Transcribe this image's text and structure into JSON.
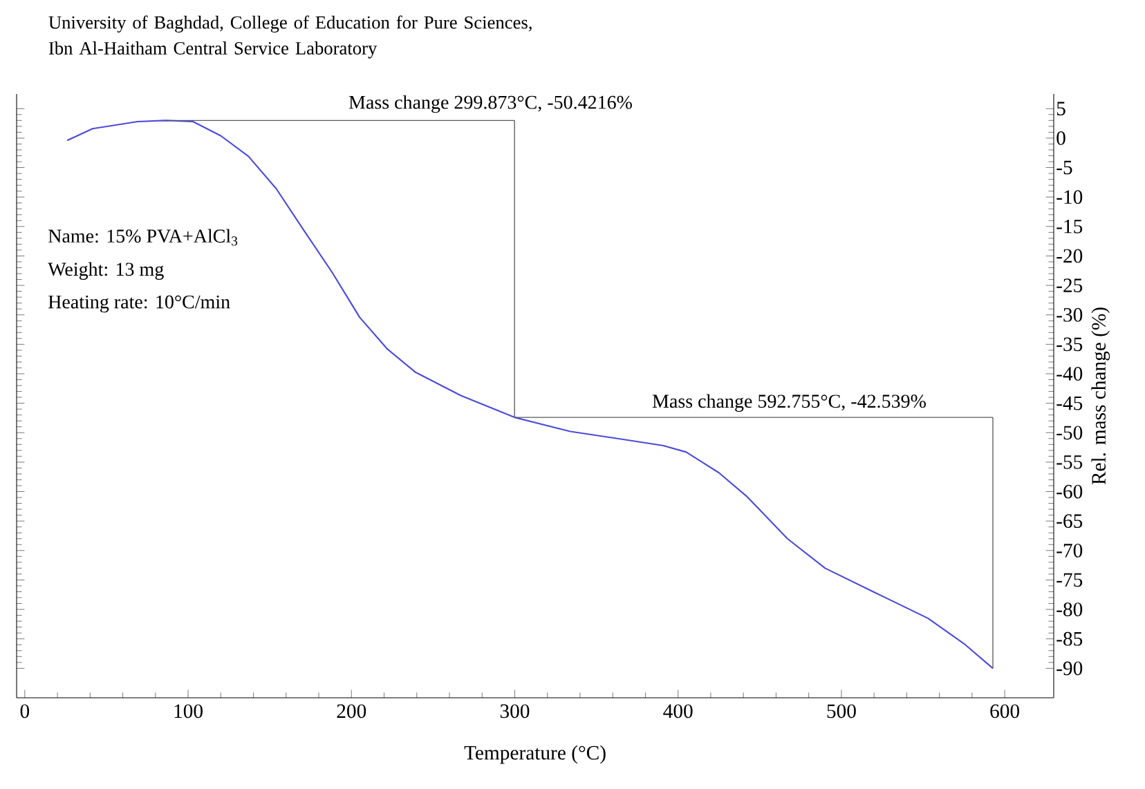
{
  "chart_data": {
    "type": "line",
    "title": "University of Baghdad, College of Education for Pure Sciences, Ibn Al-Haitham Central Service Laboratory",
    "xlabel": "Temperature (°C)",
    "ylabel": "Rel. mass change (%)",
    "x": [
      26,
      41.5,
      69,
      86,
      103,
      120,
      137,
      154,
      171,
      188,
      205,
      222,
      239,
      267,
      299.873,
      334,
      363,
      391,
      405,
      425,
      442,
      467,
      490,
      521,
      553,
      575,
      592.755
    ],
    "series": [
      {
        "color": "#4b4bd8",
        "values": [
          -0.4,
          1.6,
          2.8,
          3.0,
          2.8,
          0.4,
          -3.1,
          -8.6,
          -15.7,
          -22.7,
          -30.4,
          -35.8,
          -39.7,
          -43.7,
          -47.4,
          -49.8,
          -51.0,
          -52.2,
          -53.3,
          -56.8,
          -60.8,
          -68.0,
          -73.0,
          -77.2,
          -81.5,
          -85.8,
          -90.0
        ]
      },
      {
        "color": "#595959",
        "x": [
          86,
          299.873
        ],
        "values": [
          3.0,
          3.0
        ]
      },
      {
        "color": "#595959",
        "x": [
          299.873,
          299.873
        ],
        "values": [
          3.0,
          -47.4
        ]
      },
      {
        "color": "#595959",
        "x": [
          299.873,
          592.755
        ],
        "values": [
          -47.4,
          -47.4
        ]
      },
      {
        "color": "#595959",
        "x": [
          592.755,
          592.755
        ],
        "values": [
          -47.4,
          -90.0
        ]
      }
    ],
    "xlim": [
      -5,
      630
    ],
    "ylim": [
      -95,
      7.5
    ],
    "xticks": [
      0,
      100,
      200,
      300,
      400,
      500,
      600
    ],
    "yticks": [
      5,
      0,
      -5,
      -10,
      -15,
      -20,
      -25,
      -30,
      -35,
      -40,
      -45,
      -50,
      -55,
      -60,
      -65,
      -70,
      -75,
      -80,
      -85,
      -90
    ],
    "annotations": [
      "Mass change 299.873°C, -50.4216%",
      "Mass change 592.755°C, -42.539%",
      "Name: 15% PVA+AlCl$_{3}$",
      "Weight: 13 mg",
      "Heating rate: 10°C/min"
    ],
    "grid": false,
    "marker": "none",
    "line_style": "solid"
  }
}
